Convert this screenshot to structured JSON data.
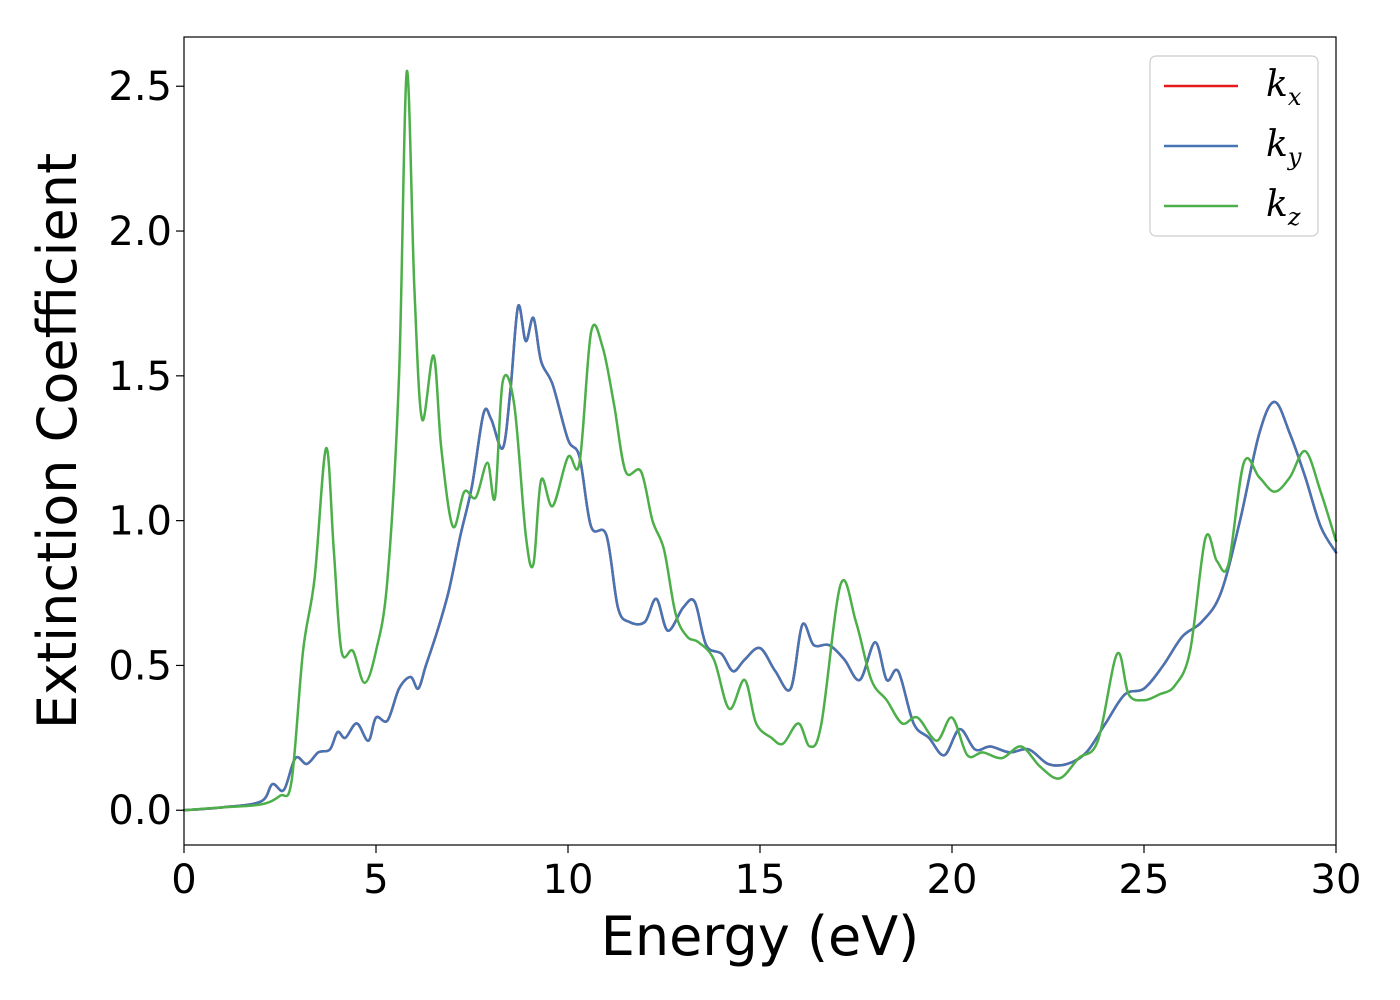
{
  "chart_data": {
    "type": "line",
    "title": "",
    "xlabel": "Energy (eV)",
    "ylabel": "Extinction Coefficient",
    "xlim": [
      0,
      30
    ],
    "ylim": [
      -0.12,
      2.67
    ],
    "grid": false,
    "legend_placement": "top-right",
    "x_ticks": [
      0,
      5,
      10,
      15,
      20,
      25,
      30
    ],
    "x_tick_labels": [
      "0",
      "5",
      "10",
      "15",
      "20",
      "25",
      "30"
    ],
    "y_ticks": [
      0.0,
      0.5,
      1.0,
      1.5,
      2.0,
      2.5
    ],
    "y_tick_labels": [
      "0.0",
      "0.5",
      "1.0",
      "1.5",
      "2.0",
      "2.5"
    ],
    "series": [
      {
        "name": "k",
        "subscript": "x",
        "color": "#e41a1c",
        "x": [
          0,
          1,
          2,
          2.3,
          2.6,
          2.9,
          3.2,
          3.5,
          3.8,
          4.0,
          4.2,
          4.5,
          4.8,
          5.0,
          5.3,
          5.6,
          5.9,
          6.1,
          6.3,
          6.6,
          6.9,
          7.2,
          7.5,
          7.8,
          8.0,
          8.3,
          8.5,
          8.7,
          8.9,
          9.1,
          9.3,
          9.6,
          10.0,
          10.3,
          10.6,
          11.0,
          11.3,
          11.6,
          12.0,
          12.3,
          12.6,
          13.0,
          13.3,
          13.6,
          14.0,
          14.3,
          14.6,
          15.0,
          15.4,
          15.8,
          16.1,
          16.4,
          16.8,
          17.2,
          17.6,
          18.0,
          18.3,
          18.6,
          19.0,
          19.4,
          19.8,
          20.2,
          20.6,
          21.0,
          21.5,
          22.0,
          22.5,
          23.0,
          23.5,
          24.0,
          24.5,
          25.0,
          25.5,
          26.0,
          26.5,
          27.0,
          27.5,
          28.0,
          28.4,
          28.8,
          29.2,
          29.6,
          30.0
        ],
        "values": [
          0.0,
          0.01,
          0.03,
          0.09,
          0.07,
          0.18,
          0.16,
          0.2,
          0.21,
          0.27,
          0.25,
          0.3,
          0.24,
          0.32,
          0.31,
          0.42,
          0.46,
          0.42,
          0.5,
          0.62,
          0.76,
          0.95,
          1.12,
          1.37,
          1.35,
          1.25,
          1.45,
          1.74,
          1.62,
          1.7,
          1.55,
          1.47,
          1.28,
          1.22,
          0.98,
          0.95,
          0.7,
          0.65,
          0.65,
          0.73,
          0.62,
          0.7,
          0.72,
          0.57,
          0.54,
          0.48,
          0.52,
          0.56,
          0.48,
          0.42,
          0.64,
          0.57,
          0.57,
          0.52,
          0.45,
          0.58,
          0.45,
          0.48,
          0.3,
          0.25,
          0.19,
          0.28,
          0.21,
          0.22,
          0.2,
          0.21,
          0.16,
          0.16,
          0.2,
          0.3,
          0.4,
          0.42,
          0.5,
          0.6,
          0.65,
          0.75,
          1.0,
          1.3,
          1.41,
          1.3,
          1.15,
          0.98,
          0.89
        ]
      },
      {
        "name": "k",
        "subscript": "y",
        "color": "#4575b4",
        "x": [
          0,
          1,
          2,
          2.3,
          2.6,
          2.9,
          3.2,
          3.5,
          3.8,
          4.0,
          4.2,
          4.5,
          4.8,
          5.0,
          5.3,
          5.6,
          5.9,
          6.1,
          6.3,
          6.6,
          6.9,
          7.2,
          7.5,
          7.8,
          8.0,
          8.3,
          8.5,
          8.7,
          8.9,
          9.1,
          9.3,
          9.6,
          10.0,
          10.3,
          10.6,
          11.0,
          11.3,
          11.6,
          12.0,
          12.3,
          12.6,
          13.0,
          13.3,
          13.6,
          14.0,
          14.3,
          14.6,
          15.0,
          15.4,
          15.8,
          16.1,
          16.4,
          16.8,
          17.2,
          17.6,
          18.0,
          18.3,
          18.6,
          19.0,
          19.4,
          19.8,
          20.2,
          20.6,
          21.0,
          21.5,
          22.0,
          22.5,
          23.0,
          23.5,
          24.0,
          24.5,
          25.0,
          25.5,
          26.0,
          26.5,
          27.0,
          27.5,
          28.0,
          28.4,
          28.8,
          29.2,
          29.6,
          30.0
        ],
        "values": [
          0.0,
          0.01,
          0.03,
          0.09,
          0.07,
          0.18,
          0.16,
          0.2,
          0.21,
          0.27,
          0.25,
          0.3,
          0.24,
          0.32,
          0.31,
          0.42,
          0.46,
          0.42,
          0.5,
          0.62,
          0.76,
          0.95,
          1.12,
          1.37,
          1.35,
          1.25,
          1.45,
          1.74,
          1.62,
          1.7,
          1.55,
          1.47,
          1.28,
          1.22,
          0.98,
          0.95,
          0.7,
          0.65,
          0.65,
          0.73,
          0.62,
          0.7,
          0.72,
          0.57,
          0.54,
          0.48,
          0.52,
          0.56,
          0.48,
          0.42,
          0.64,
          0.57,
          0.57,
          0.52,
          0.45,
          0.58,
          0.45,
          0.48,
          0.3,
          0.25,
          0.19,
          0.28,
          0.21,
          0.22,
          0.2,
          0.21,
          0.16,
          0.16,
          0.2,
          0.3,
          0.4,
          0.42,
          0.5,
          0.6,
          0.65,
          0.75,
          1.0,
          1.3,
          1.41,
          1.3,
          1.15,
          0.98,
          0.89
        ]
      },
      {
        "name": "k",
        "subscript": "z",
        "color": "#4daf4a",
        "x": [
          0,
          1,
          2,
          2.5,
          2.8,
          3.1,
          3.4,
          3.7,
          3.9,
          4.1,
          4.4,
          4.7,
          5.0,
          5.3,
          5.6,
          5.8,
          6.0,
          6.2,
          6.5,
          6.7,
          7.0,
          7.3,
          7.6,
          7.9,
          8.1,
          8.3,
          8.6,
          8.9,
          9.1,
          9.3,
          9.6,
          10.0,
          10.3,
          10.6,
          10.9,
          11.2,
          11.5,
          11.9,
          12.2,
          12.5,
          12.8,
          13.1,
          13.4,
          13.8,
          14.2,
          14.6,
          14.9,
          15.3,
          15.6,
          16.0,
          16.3,
          16.6,
          17.1,
          17.5,
          17.9,
          18.3,
          18.7,
          19.1,
          19.6,
          20.0,
          20.4,
          20.8,
          21.3,
          21.8,
          22.3,
          22.8,
          23.3,
          23.8,
          24.3,
          24.6,
          25.0,
          25.4,
          25.8,
          26.2,
          26.6,
          26.9,
          27.2,
          27.6,
          28.0,
          28.4,
          28.8,
          29.2,
          29.6,
          30.0
        ],
        "values": [
          0.0,
          0.01,
          0.02,
          0.05,
          0.1,
          0.55,
          0.8,
          1.25,
          0.9,
          0.55,
          0.55,
          0.44,
          0.55,
          0.8,
          1.5,
          2.55,
          1.8,
          1.35,
          1.57,
          1.25,
          0.98,
          1.1,
          1.08,
          1.2,
          1.08,
          1.48,
          1.4,
          0.95,
          0.85,
          1.14,
          1.05,
          1.22,
          1.2,
          1.65,
          1.6,
          1.4,
          1.17,
          1.17,
          1.0,
          0.9,
          0.68,
          0.6,
          0.58,
          0.52,
          0.35,
          0.45,
          0.3,
          0.25,
          0.23,
          0.3,
          0.22,
          0.3,
          0.78,
          0.65,
          0.45,
          0.38,
          0.3,
          0.32,
          0.24,
          0.32,
          0.19,
          0.2,
          0.18,
          0.22,
          0.15,
          0.11,
          0.18,
          0.24,
          0.54,
          0.4,
          0.38,
          0.4,
          0.43,
          0.55,
          0.94,
          0.86,
          0.85,
          1.2,
          1.15,
          1.1,
          1.15,
          1.24,
          1.1,
          0.93
        ]
      }
    ]
  }
}
